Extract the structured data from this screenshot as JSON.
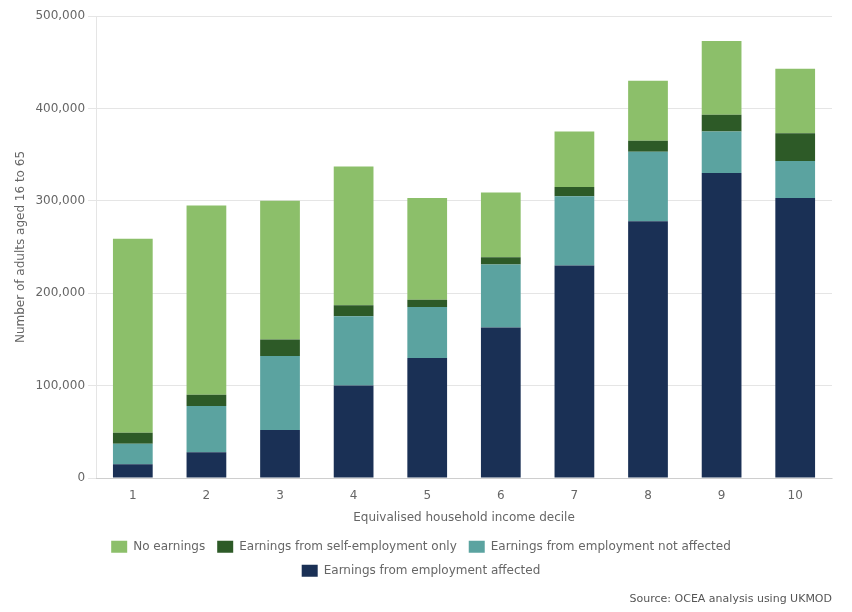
{
  "chart_data": {
    "type": "bar",
    "stacked": true,
    "categories": [
      "1",
      "2",
      "3",
      "4",
      "5",
      "6",
      "7",
      "8",
      "9",
      "10"
    ],
    "series": [
      {
        "name": "Earnings from employment affected",
        "color": "#1A3055",
        "values": [
          15000,
          28000,
          52000,
          100000,
          130000,
          163000,
          230000,
          278000,
          330000,
          303000
        ]
      },
      {
        "name": "Earnings from employment not affected",
        "color": "#5BA3A0",
        "values": [
          22000,
          50000,
          80000,
          75000,
          55000,
          68000,
          75000,
          75000,
          45000,
          40000
        ]
      },
      {
        "name": "Earnings from self-employment only",
        "color": "#2D5A27",
        "values": [
          12000,
          12000,
          18000,
          12000,
          8000,
          8000,
          10000,
          12000,
          18000,
          30000
        ]
      },
      {
        "name": "No earnings",
        "color": "#8CBF6A",
        "values": [
          210000,
          205000,
          150000,
          150000,
          110000,
          70000,
          60000,
          65000,
          80000,
          70000
        ]
      }
    ],
    "xlabel": "Equivalised household income decile",
    "ylabel": "Number of adults aged 16 to 65",
    "annotations": [
      {
        "text": "Source: OCEA analysis using UKMOD"
      }
    ],
    "ylim": [
      0,
      500000
    ],
    "yticks": [
      0,
      {
        "value": 100000,
        "label": "100,000"
      },
      {
        "value": 200000,
        "label": "200,000"
      },
      {
        "value": 300000,
        "label": "300,000"
      },
      {
        "value": 400000,
        "label": "400,000"
      },
      {
        "value": 500000,
        "label": "500,000"
      }
    ],
    "grid": true,
    "legend": "bottom"
  }
}
